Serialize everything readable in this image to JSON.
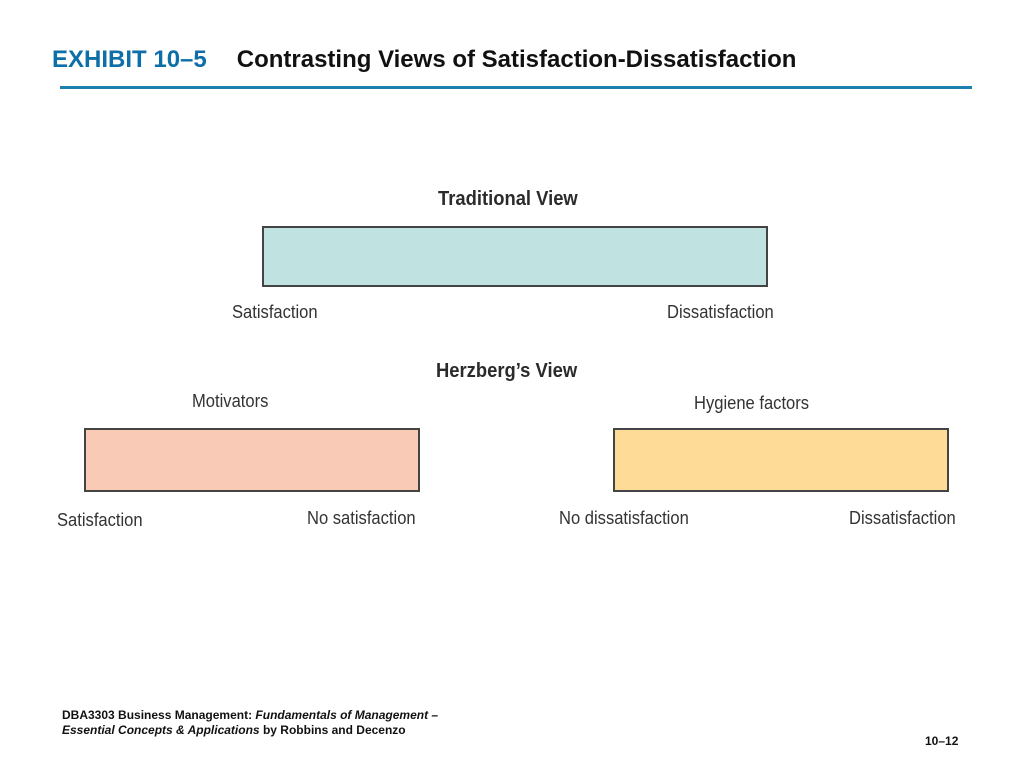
{
  "header": {
    "exhibit_label": "EXHIBIT 10–5",
    "title": "Contrasting Views of Satisfaction-Dissatisfaction"
  },
  "colors": {
    "accent": "#1b7fb0",
    "traditional_bar": "#c0e2e0",
    "motivators_bar": "#f9cab5",
    "hygiene_bar": "#fedb96"
  },
  "traditional": {
    "heading": "Traditional View",
    "left_label": "Satisfaction",
    "right_label": "Dissatisfaction"
  },
  "herzberg": {
    "heading": "Herzberg’s View",
    "motivators": {
      "heading": "Motivators",
      "left_label": "Satisfaction",
      "right_label": "No satisfaction"
    },
    "hygiene": {
      "heading": "Hygiene factors",
      "left_label": "No dissatisfaction",
      "right_label": "Dissatisfaction"
    }
  },
  "footer": {
    "course": "DBA3303 Business Management: ",
    "book_title_line1": "Fundamentals of Management –",
    "book_title_line2": "Essential Concepts & Applications",
    "authors": " by Robbins and Decenzo",
    "page_number": "10–12"
  }
}
